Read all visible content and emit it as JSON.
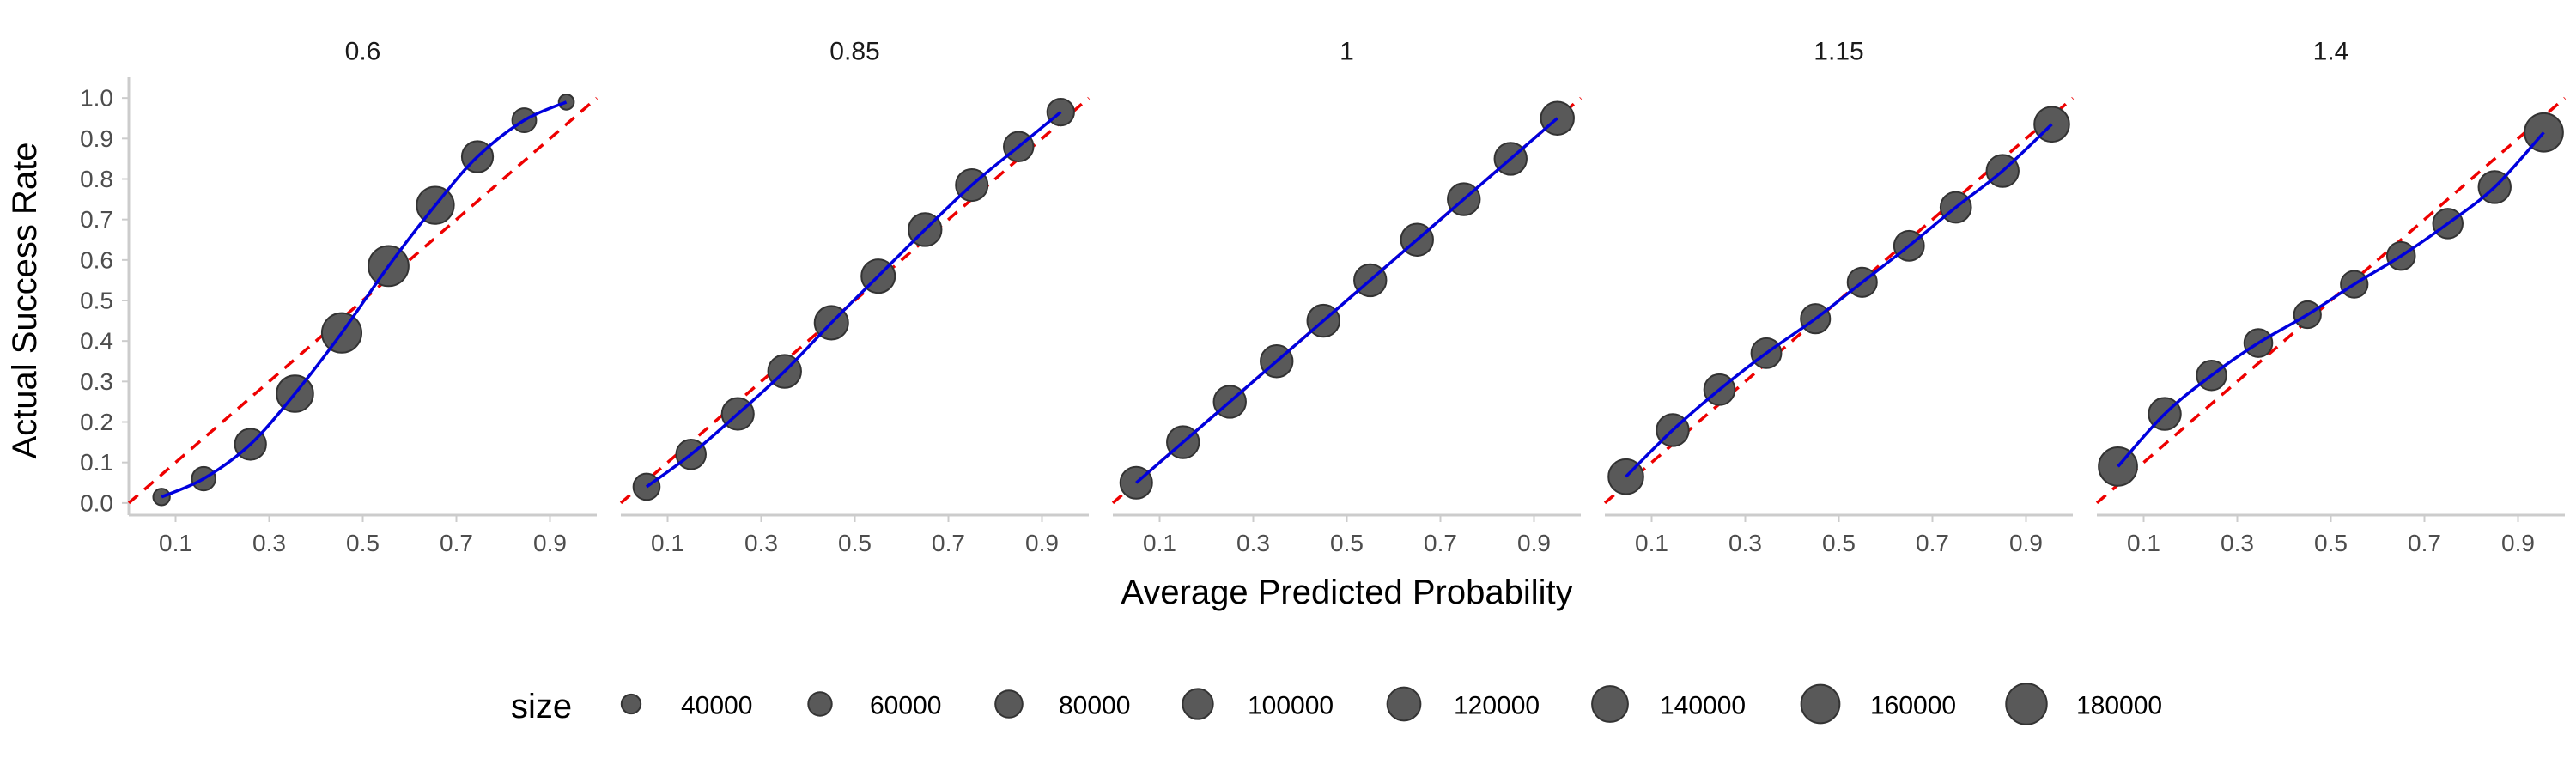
{
  "chart_data": {
    "type": "scatter",
    "facets": [
      "0.6",
      "0.85",
      "1",
      "1.15",
      "1.4"
    ],
    "xlabel": "Average Predicted Probability",
    "ylabel": "Actual Success Rate",
    "x_ticks": [
      0.1,
      0.3,
      0.5,
      0.7,
      0.9
    ],
    "x_tick_labels": [
      "0.1",
      "0.3",
      "0.5",
      "0.7",
      "0.9"
    ],
    "y_ticks": [
      0.0,
      0.1,
      0.2,
      0.3,
      0.4,
      0.5,
      0.6,
      0.7,
      0.8,
      0.9,
      1.0
    ],
    "y_tick_labels": [
      "0.0",
      "0.1",
      "0.2",
      "0.3",
      "0.4",
      "0.5",
      "0.6",
      "0.7",
      "0.8",
      "0.9",
      "1.0"
    ],
    "xlim": [
      0.0,
      1.0
    ],
    "ylim": [
      -0.03,
      1.03
    ],
    "reference_line": {
      "style": "dashed",
      "color": "#ee0000",
      "slope": 1,
      "intercept": 0
    },
    "smooth_line_color": "#0000dd",
    "point_color": "#595959",
    "point_outline_color": "#333333",
    "grid": false,
    "size_legend": {
      "title": "size",
      "position": "bottom",
      "values": [
        40000,
        60000,
        80000,
        100000,
        120000,
        140000,
        160000,
        180000
      ],
      "labels": [
        "40000",
        "60000",
        "80000",
        "100000",
        "120000",
        "140000",
        "160000",
        "180000"
      ]
    },
    "panels": [
      {
        "facet": "0.6",
        "points": [
          {
            "x": 0.07,
            "y": 0.015,
            "size": 30000
          },
          {
            "x": 0.16,
            "y": 0.06,
            "size": 60000
          },
          {
            "x": 0.26,
            "y": 0.145,
            "size": 105000
          },
          {
            "x": 0.355,
            "y": 0.27,
            "size": 145000
          },
          {
            "x": 0.455,
            "y": 0.42,
            "size": 170000
          },
          {
            "x": 0.555,
            "y": 0.585,
            "size": 175000
          },
          {
            "x": 0.655,
            "y": 0.735,
            "size": 150000
          },
          {
            "x": 0.745,
            "y": 0.855,
            "size": 105000
          },
          {
            "x": 0.845,
            "y": 0.945,
            "size": 62000
          },
          {
            "x": 0.935,
            "y": 0.99,
            "size": 25000
          }
        ]
      },
      {
        "facet": "0.85",
        "points": [
          {
            "x": 0.055,
            "y": 0.04,
            "size": 75000
          },
          {
            "x": 0.15,
            "y": 0.12,
            "size": 95000
          },
          {
            "x": 0.25,
            "y": 0.22,
            "size": 110000
          },
          {
            "x": 0.35,
            "y": 0.325,
            "size": 118000
          },
          {
            "x": 0.45,
            "y": 0.445,
            "size": 122000
          },
          {
            "x": 0.55,
            "y": 0.56,
            "size": 122000
          },
          {
            "x": 0.65,
            "y": 0.675,
            "size": 118000
          },
          {
            "x": 0.75,
            "y": 0.785,
            "size": 110000
          },
          {
            "x": 0.85,
            "y": 0.88,
            "size": 95000
          },
          {
            "x": 0.94,
            "y": 0.965,
            "size": 78000
          }
        ]
      },
      {
        "facet": "1",
        "points": [
          {
            "x": 0.05,
            "y": 0.05,
            "size": 110000
          },
          {
            "x": 0.15,
            "y": 0.15,
            "size": 112000
          },
          {
            "x": 0.25,
            "y": 0.25,
            "size": 112000
          },
          {
            "x": 0.35,
            "y": 0.35,
            "size": 112000
          },
          {
            "x": 0.45,
            "y": 0.45,
            "size": 112000
          },
          {
            "x": 0.55,
            "y": 0.55,
            "size": 112000
          },
          {
            "x": 0.65,
            "y": 0.65,
            "size": 112000
          },
          {
            "x": 0.75,
            "y": 0.75,
            "size": 112000
          },
          {
            "x": 0.85,
            "y": 0.85,
            "size": 112000
          },
          {
            "x": 0.95,
            "y": 0.95,
            "size": 118000
          }
        ]
      },
      {
        "facet": "1.15",
        "points": [
          {
            "x": 0.045,
            "y": 0.065,
            "size": 132000
          },
          {
            "x": 0.145,
            "y": 0.18,
            "size": 112000
          },
          {
            "x": 0.245,
            "y": 0.28,
            "size": 102000
          },
          {
            "x": 0.345,
            "y": 0.37,
            "size": 97000
          },
          {
            "x": 0.45,
            "y": 0.455,
            "size": 93000
          },
          {
            "x": 0.55,
            "y": 0.545,
            "size": 93000
          },
          {
            "x": 0.65,
            "y": 0.635,
            "size": 97000
          },
          {
            "x": 0.75,
            "y": 0.73,
            "size": 102000
          },
          {
            "x": 0.85,
            "y": 0.82,
            "size": 112000
          },
          {
            "x": 0.955,
            "y": 0.935,
            "size": 132000
          }
        ]
      },
      {
        "facet": "1.4",
        "points": [
          {
            "x": 0.045,
            "y": 0.09,
            "size": 160000
          },
          {
            "x": 0.145,
            "y": 0.22,
            "size": 112000
          },
          {
            "x": 0.245,
            "y": 0.315,
            "size": 95000
          },
          {
            "x": 0.345,
            "y": 0.395,
            "size": 85000
          },
          {
            "x": 0.45,
            "y": 0.465,
            "size": 78000
          },
          {
            "x": 0.55,
            "y": 0.54,
            "size": 78000
          },
          {
            "x": 0.65,
            "y": 0.61,
            "size": 85000
          },
          {
            "x": 0.75,
            "y": 0.69,
            "size": 95000
          },
          {
            "x": 0.85,
            "y": 0.78,
            "size": 112000
          },
          {
            "x": 0.955,
            "y": 0.915,
            "size": 160000
          }
        ]
      }
    ]
  }
}
